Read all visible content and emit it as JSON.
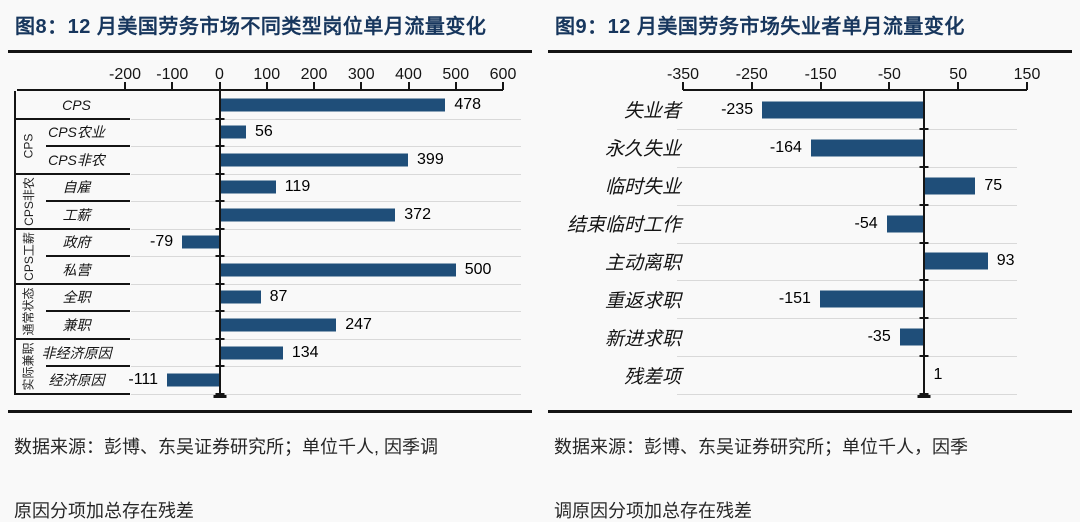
{
  "panels": [
    {
      "title": "图8：12 月美国劳务市场不同类型岗位单月流量变化",
      "source_line1": "数据来源：彭博、东吴证券研究所；单位千人, 因季调",
      "source_line2": "原因分项加总存在残差"
    },
    {
      "title": "图9：12 月美国劳务市场失业者单月流量变化",
      "source_line1": "数据来源：彭博、东吴证券研究所；单位千人，因季",
      "source_line2": "调原因分项加总存在残差"
    }
  ],
  "colors": {
    "bar": "#1f4e79",
    "title": "#17365d",
    "rule": "#141414",
    "gridline": "#d9d9d9",
    "background": "#f9f9f9"
  },
  "chart_data": [
    {
      "type": "bar",
      "orientation": "horizontal",
      "title": "12 月美国劳务市场不同类型岗位单月流量变化",
      "unit": "千人",
      "categories": [
        "CPS",
        "CPS农业",
        "CPS非农",
        "自雇",
        "工薪",
        "政府",
        "私营",
        "全职",
        "兼职",
        "非经济原因",
        "经济原因"
      ],
      "values": [
        478,
        56,
        399,
        119,
        372,
        -79,
        500,
        87,
        247,
        134,
        -111
      ],
      "groups": [
        {
          "label": "CPS",
          "rows": [
            1,
            2
          ]
        },
        {
          "label": "CPS非农",
          "rows": [
            3,
            4
          ]
        },
        {
          "label": "CPS工薪",
          "rows": [
            5,
            6
          ]
        },
        {
          "label": "通常状态",
          "rows": [
            7,
            8
          ]
        },
        {
          "label": "实际兼职",
          "rows": [
            9,
            10
          ]
        }
      ],
      "x_ticks": [
        -200,
        -100,
        0,
        100,
        200,
        300,
        400,
        500,
        600
      ],
      "xlim": [
        -200,
        600
      ],
      "grid": true,
      "value_labels": true
    },
    {
      "type": "bar",
      "orientation": "horizontal",
      "title": "12 月美国劳务市场失业者单月流量变化",
      "unit": "千人",
      "categories": [
        "失业者",
        "永久失业",
        "临时失业",
        "结束临时工作",
        "主动离职",
        "重返求职",
        "新进求职",
        "残差项"
      ],
      "values": [
        -235,
        -164,
        75,
        -54,
        93,
        -151,
        -35,
        1
      ],
      "x_ticks": [
        -350,
        -250,
        -150,
        -50,
        50,
        150
      ],
      "xlim": [
        -350,
        150
      ],
      "grid": true,
      "value_labels": true
    }
  ]
}
